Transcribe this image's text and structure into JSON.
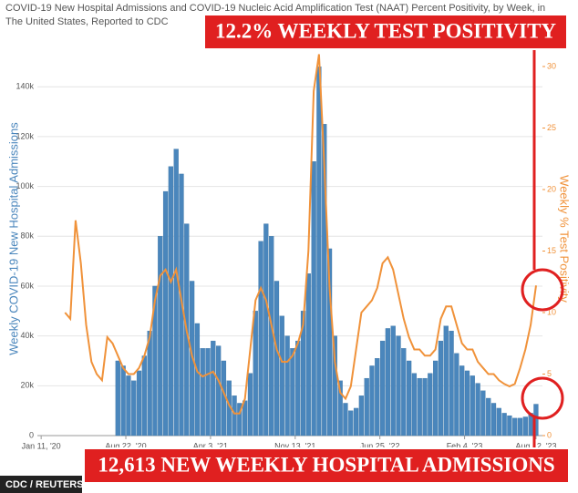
{
  "chart_data": {
    "type": "bar_line",
    "title": "COVID-19 New Hospital Admissions and COVID-19 Nucleic Acid Amplification Test (NAAT) Percent Positivity, by Week, in The United States, Reported to CDC",
    "y_label": "Weekly COVID-19 New Hospital Admissions",
    "y2_label": "Weekly % Test Positivity",
    "annotations": [
      "12.2% WEEKLY TEST POSITIVITY",
      "12,613 NEW WEEKLY HOSPITAL ADMISSIONS"
    ],
    "source": "CDC / REUTERS",
    "x": [
      "2020-03-14",
      "2020-03-28",
      "2020-04-11",
      "2020-04-25",
      "2020-05-09",
      "2020-05-23",
      "2020-06-06",
      "2020-06-20",
      "2020-07-04",
      "2020-07-18",
      "2020-08-01",
      "2020-08-15",
      "2020-08-29",
      "2020-09-12",
      "2020-09-26",
      "2020-10-10",
      "2020-10-24",
      "2020-11-07",
      "2020-11-21",
      "2020-12-05",
      "2020-12-19",
      "2021-01-02",
      "2021-01-16",
      "2021-01-30",
      "2021-02-13",
      "2021-02-27",
      "2021-03-13",
      "2021-03-27",
      "2021-04-10",
      "2021-04-24",
      "2021-05-08",
      "2021-05-22",
      "2021-06-05",
      "2021-06-19",
      "2021-07-03",
      "2021-07-17",
      "2021-07-31",
      "2021-08-14",
      "2021-08-28",
      "2021-09-11",
      "2021-09-25",
      "2021-10-09",
      "2021-10-23",
      "2021-11-06",
      "2021-11-20",
      "2021-12-04",
      "2021-12-18",
      "2022-01-01",
      "2022-01-15",
      "2022-01-29",
      "2022-02-12",
      "2022-02-26",
      "2022-03-12",
      "2022-03-26",
      "2022-04-09",
      "2022-04-23",
      "2022-05-07",
      "2022-05-21",
      "2022-06-04",
      "2022-06-18",
      "2022-07-02",
      "2022-07-16",
      "2022-07-30",
      "2022-08-13",
      "2022-08-27",
      "2022-09-10",
      "2022-09-24",
      "2022-10-08",
      "2022-10-22",
      "2022-11-05",
      "2022-11-19",
      "2022-12-03",
      "2022-12-17",
      "2022-12-31",
      "2023-01-14",
      "2023-01-28",
      "2023-02-11",
      "2023-02-25",
      "2023-03-11",
      "2023-03-25",
      "2023-04-08",
      "2023-04-22",
      "2023-05-06",
      "2023-05-20",
      "2023-06-03",
      "2023-06-17",
      "2023-07-01",
      "2023-07-15",
      "2023-07-29",
      "2023-08-12"
    ],
    "series": [
      {
        "name": "Weekly COVID-19 New Hospital Admissions",
        "kind": "bar",
        "color": "#4a86bc",
        "values": [
          null,
          null,
          null,
          null,
          null,
          null,
          null,
          null,
          null,
          null,
          30000,
          28000,
          24000,
          22000,
          26000,
          32000,
          42000,
          60000,
          80000,
          98000,
          108000,
          115000,
          105000,
          85000,
          62000,
          45000,
          35000,
          35000,
          38000,
          36000,
          30000,
          22000,
          16000,
          13000,
          14000,
          25000,
          50000,
          78000,
          85000,
          80000,
          62000,
          48000,
          40000,
          35000,
          38000,
          50000,
          65000,
          110000,
          148000,
          125000,
          75000,
          40000,
          22000,
          13000,
          10000,
          11000,
          16000,
          23000,
          28000,
          31000,
          38000,
          43000,
          44000,
          40000,
          35000,
          30000,
          25000,
          23000,
          23000,
          25000,
          30000,
          38000,
          44000,
          42000,
          33000,
          28000,
          26000,
          24000,
          21000,
          18000,
          15000,
          13000,
          11000,
          9000,
          8000,
          7000,
          7000,
          7500,
          9000,
          12613
        ]
      },
      {
        "name": "Weekly % Test Positivity",
        "kind": "line",
        "axis": "y2",
        "color": "#f0923a",
        "values": [
          10,
          9.5,
          17.5,
          14,
          9,
          6,
          5,
          4.5,
          8,
          7.5,
          6.5,
          5.5,
          5,
          5,
          5.5,
          6.5,
          8,
          11,
          13,
          13.5,
          12.5,
          13.5,
          11,
          8.5,
          6.5,
          5.2,
          4.8,
          5,
          5.2,
          4.5,
          3.5,
          2.5,
          1.8,
          1.8,
          3,
          7,
          11,
          12,
          11,
          9,
          7,
          6,
          6,
          6.5,
          7.5,
          9,
          15,
          28,
          31,
          22,
          12,
          6,
          3.5,
          3,
          4,
          7,
          10,
          10.5,
          11,
          12,
          14,
          14.5,
          13.5,
          11.5,
          9.5,
          8,
          7,
          7,
          6.5,
          6.5,
          7,
          9.5,
          10.5,
          10.5,
          9,
          7.5,
          7,
          7,
          6,
          5.5,
          5,
          5,
          4.5,
          4.2,
          4,
          4.2,
          5.5,
          7,
          9,
          12.2
        ]
      }
    ],
    "xlim": [
      "2020-01-01",
      "2023-08-29"
    ],
    "xticks": [
      {
        "value": "2020-01-11",
        "label": "Jan 11, '20"
      },
      {
        "value": "2020-08-22",
        "label": "Aug 22, '20"
      },
      {
        "value": "2021-04-03",
        "label": "Apr 3, '21"
      },
      {
        "value": "2021-11-13",
        "label": "Nov 13, '21"
      },
      {
        "value": "2022-06-25",
        "label": "Jun 25, '22"
      },
      {
        "value": "2023-02-04",
        "label": "Feb 4, '23"
      },
      {
        "value": "2023-08-12",
        "label": "Aug 12, '23"
      }
    ],
    "ylim": [
      0,
      158000
    ],
    "yticks": [
      0,
      {
        "value": 20000,
        "label": "20k"
      },
      {
        "value": 40000,
        "label": "40k"
      },
      {
        "value": 60000,
        "label": "60k"
      },
      {
        "value": 80000,
        "label": "80k"
      },
      {
        "value": 100000,
        "label": "100k"
      },
      {
        "value": 120000,
        "label": "120k"
      },
      {
        "value": 140000,
        "label": "140k"
      }
    ],
    "y2lim": [
      0,
      32
    ],
    "y2ticks": [
      0,
      5,
      10,
      15,
      20,
      25,
      30
    ],
    "grid": true
  }
}
